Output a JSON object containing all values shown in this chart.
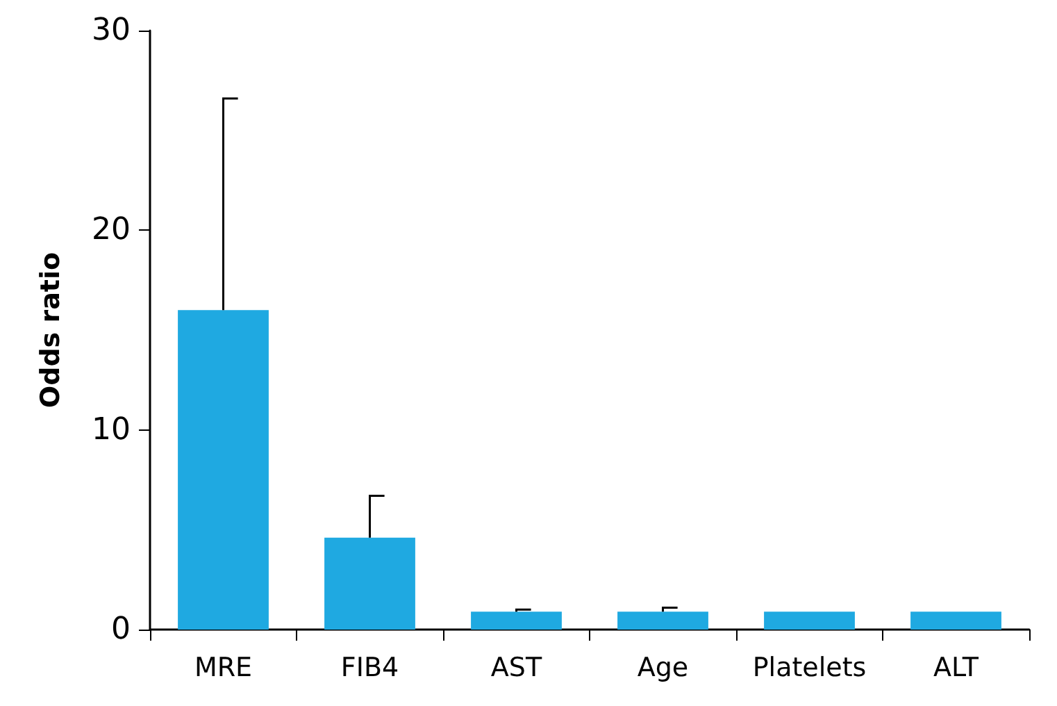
{
  "chart_data": {
    "type": "bar",
    "ylabel": "Odds ratio",
    "categories": [
      "MRE",
      "FIB4",
      "AST",
      "Age",
      "Platelets",
      "ALT"
    ],
    "values": [
      16,
      4.6,
      0.9,
      0.9,
      0.9,
      0.9
    ],
    "errors": [
      [
        16,
        26.6
      ],
      [
        4.6,
        6.7
      ],
      [
        0.9,
        1.0
      ],
      [
        0.9,
        1.1
      ],
      null,
      null
    ],
    "color": "#1fa9e1",
    "ylim": [
      0,
      30
    ],
    "yticks": [
      0,
      10,
      20,
      30
    ],
    "grid": false
  }
}
